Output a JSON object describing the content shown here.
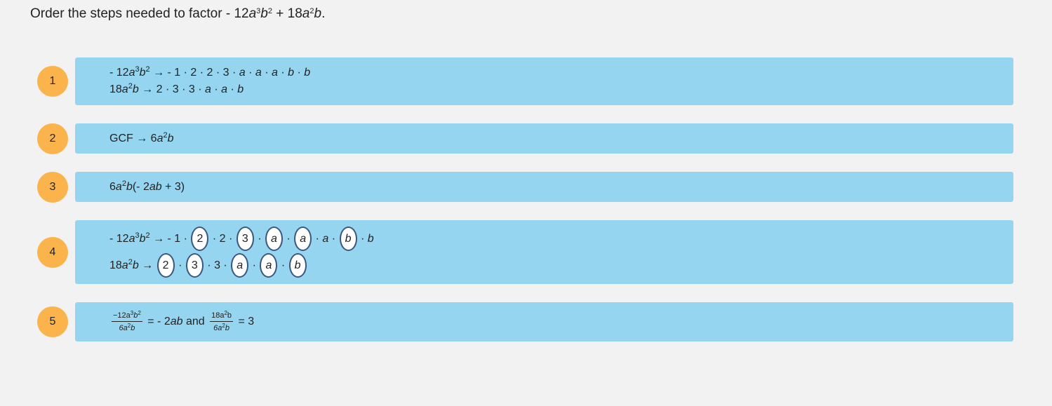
{
  "question": {
    "segments": [
      {
        "text": "Order the steps needed to factor "
      },
      {
        "text": "- 12"
      },
      {
        "text": "a",
        "italic": true
      },
      {
        "text": "3",
        "sup": true
      },
      {
        "text": "b",
        "italic": true
      },
      {
        "text": "2",
        "sup": true
      },
      {
        "text": " + 18"
      },
      {
        "text": "a",
        "italic": true
      },
      {
        "text": "2",
        "sup": true
      },
      {
        "text": "b",
        "italic": true
      },
      {
        "text": "."
      }
    ]
  },
  "steps": [
    {
      "number": 1,
      "lines": [
        [
          {
            "text": "- 12"
          },
          {
            "text": "a",
            "italic": true
          },
          {
            "text": "3",
            "sup": true
          },
          {
            "text": "b",
            "italic": true
          },
          {
            "text": "2",
            "sup": true
          },
          {
            "text": " → - 1 · 2 · 2 · 3 · "
          },
          {
            "text": "a",
            "italic": true
          },
          {
            "text": " · "
          },
          {
            "text": "a",
            "italic": true
          },
          {
            "text": " · "
          },
          {
            "text": "a",
            "italic": true
          },
          {
            "text": " · "
          },
          {
            "text": "b",
            "italic": true
          },
          {
            "text": " · "
          },
          {
            "text": "b",
            "italic": true
          }
        ],
        [
          {
            "text": "18"
          },
          {
            "text": "a",
            "italic": true
          },
          {
            "text": "2",
            "sup": true
          },
          {
            "text": "b",
            "italic": true
          },
          {
            "text": " → 2 · 3 · 3 · "
          },
          {
            "text": "a",
            "italic": true
          },
          {
            "text": " · "
          },
          {
            "text": "a",
            "italic": true
          },
          {
            "text": " · "
          },
          {
            "text": "b",
            "italic": true
          }
        ]
      ]
    },
    {
      "number": 2,
      "lines": [
        [
          {
            "text": "GCF → 6"
          },
          {
            "text": "a",
            "italic": true
          },
          {
            "text": "2",
            "sup": true
          },
          {
            "text": "b",
            "italic": true
          }
        ]
      ]
    },
    {
      "number": 3,
      "lines": [
        [
          {
            "text": "6"
          },
          {
            "text": "a",
            "italic": true
          },
          {
            "text": "2",
            "sup": true
          },
          {
            "text": "b",
            "italic": true
          },
          {
            "text": "(- 2"
          },
          {
            "text": "ab",
            "italic": true
          },
          {
            "text": " + 3)"
          }
        ]
      ]
    },
    {
      "number": 4,
      "lines": [
        [
          {
            "text": "- 12"
          },
          {
            "text": "a",
            "italic": true
          },
          {
            "text": "3",
            "sup": true
          },
          {
            "text": "b",
            "italic": true
          },
          {
            "text": "2",
            "sup": true
          },
          {
            "text": " → - 1 · "
          },
          {
            "text": "2",
            "circled": true
          },
          {
            "text": " · 2 · "
          },
          {
            "text": "3",
            "circled": true
          },
          {
            "text": " · "
          },
          {
            "text": "a",
            "italic": true,
            "circled": true
          },
          {
            "text": " · "
          },
          {
            "text": "a",
            "italic": true,
            "circled": true
          },
          {
            "text": " · "
          },
          {
            "text": "a",
            "italic": true
          },
          {
            "text": " · "
          },
          {
            "text": "b",
            "italic": true,
            "circled": true
          },
          {
            "text": " · "
          },
          {
            "text": "b",
            "italic": true
          }
        ],
        [
          {
            "text": "18"
          },
          {
            "text": "a",
            "italic": true
          },
          {
            "text": "2",
            "sup": true
          },
          {
            "text": "b",
            "italic": true
          },
          {
            "text": " → "
          },
          {
            "text": "2",
            "circled": true
          },
          {
            "text": " · "
          },
          {
            "text": "3",
            "circled": true
          },
          {
            "text": " · 3 · "
          },
          {
            "text": "a",
            "italic": true,
            "circled": true
          },
          {
            "text": " · "
          },
          {
            "text": "a",
            "italic": true,
            "circled": true
          },
          {
            "text": " · "
          },
          {
            "text": "b",
            "italic": true,
            "circled": true
          }
        ]
      ]
    },
    {
      "number": 5,
      "lines": [
        [
          {
            "num": [
              {
                "text": "−12a"
              },
              {
                "text": "3",
                "sup": true
              },
              {
                "text": "b",
                "italic": true
              },
              {
                "text": "2",
                "sup": true
              }
            ],
            "den": [
              {
                "text": "6a",
                "italic": true
              },
              {
                "text": "2",
                "sup": true
              },
              {
                "text": "b",
                "italic": true
              }
            ]
          },
          {
            "text": " = - 2"
          },
          {
            "text": "ab",
            "italic": true
          },
          {
            "text": " and "
          },
          {
            "num": [
              {
                "text": "18a"
              },
              {
                "text": "2",
                "sup": true
              },
              {
                "text": "b"
              }
            ],
            "den": [
              {
                "text": "6a",
                "italic": true
              },
              {
                "text": "2",
                "sup": true
              },
              {
                "text": "b",
                "italic": true
              }
            ]
          },
          {
            "text": " = 3"
          }
        ]
      ]
    }
  ]
}
